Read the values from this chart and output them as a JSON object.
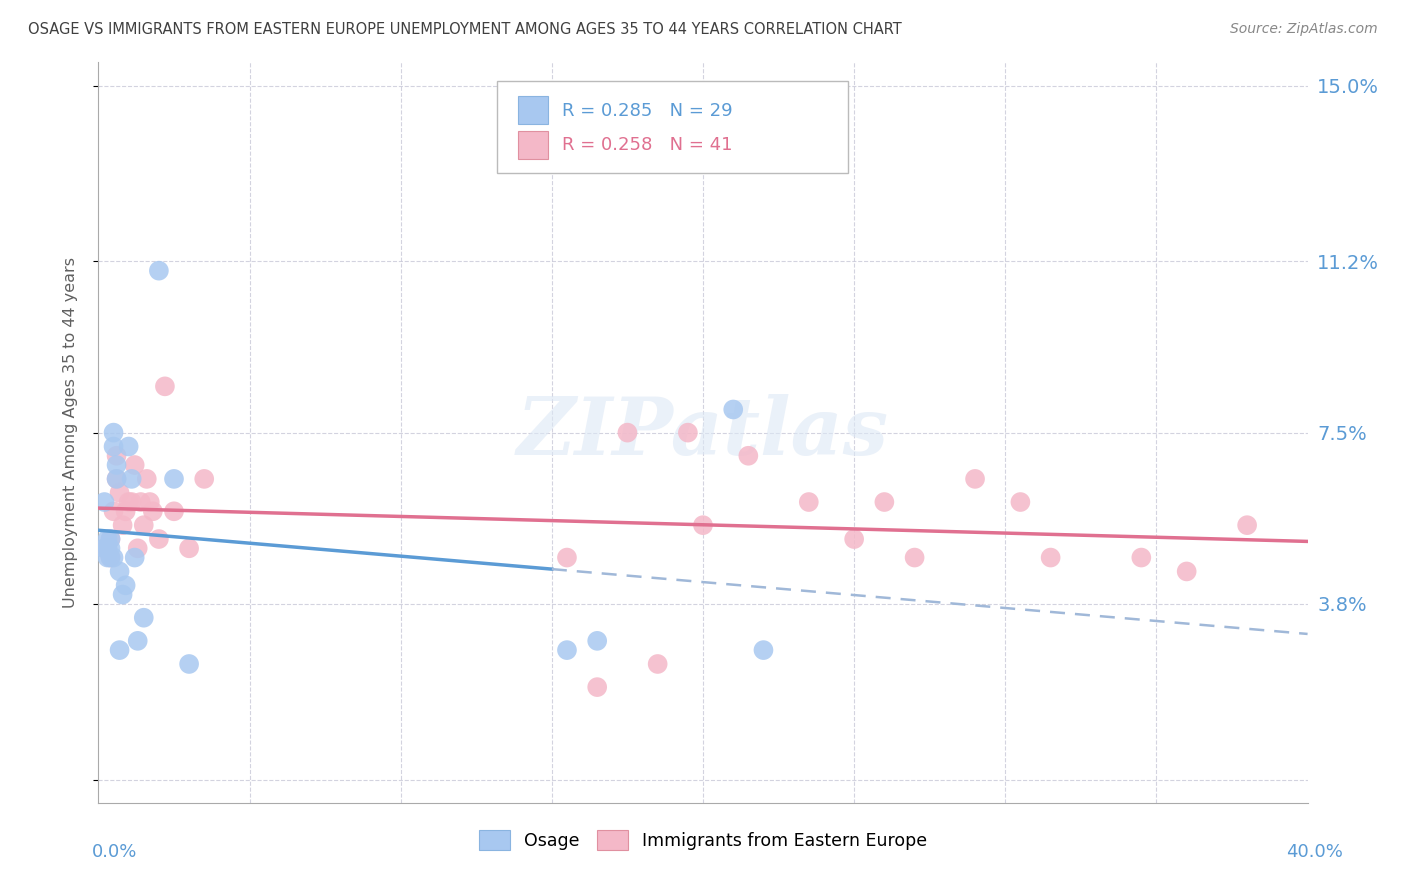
{
  "title": "OSAGE VS IMMIGRANTS FROM EASTERN EUROPE UNEMPLOYMENT AMONG AGES 35 TO 44 YEARS CORRELATION CHART",
  "source": "Source: ZipAtlas.com",
  "ylabel": "Unemployment Among Ages 35 to 44 years",
  "ytick_vals": [
    0.0,
    0.038,
    0.075,
    0.112,
    0.15
  ],
  "ytick_labels": [
    "",
    "3.8%",
    "7.5%",
    "11.2%",
    "15.0%"
  ],
  "xlim": [
    0.0,
    0.4
  ],
  "ylim": [
    -0.005,
    0.155
  ],
  "legend_r1": "R = 0.285",
  "legend_n1": "N = 29",
  "legend_r2": "R = 0.258",
  "legend_n2": "N = 41",
  "watermark": "ZIPatlas",
  "blue_color": "#a8c8f0",
  "blue_line": "#5b9bd5",
  "blue_dash": "#a0b8d8",
  "pink_color": "#f4b8c8",
  "pink_line": "#e07090",
  "background_color": "#ffffff",
  "grid_color": "#c8c8d8",
  "title_color": "#404040",
  "tick_label_color": "#5b9bd5",
  "ylabel_color": "#606060",
  "osage_x": [
    0.002,
    0.002,
    0.003,
    0.003,
    0.003,
    0.004,
    0.004,
    0.004,
    0.005,
    0.005,
    0.005,
    0.006,
    0.006,
    0.007,
    0.007,
    0.008,
    0.009,
    0.01,
    0.011,
    0.012,
    0.013,
    0.015,
    0.02,
    0.025,
    0.03,
    0.155,
    0.165,
    0.21,
    0.22
  ],
  "osage_y": [
    0.05,
    0.06,
    0.05,
    0.048,
    0.052,
    0.052,
    0.048,
    0.05,
    0.048,
    0.072,
    0.075,
    0.065,
    0.068,
    0.028,
    0.045,
    0.04,
    0.042,
    0.072,
    0.065,
    0.048,
    0.03,
    0.035,
    0.11,
    0.065,
    0.025,
    0.028,
    0.03,
    0.08,
    0.028
  ],
  "europe_x": [
    0.002,
    0.003,
    0.004,
    0.004,
    0.005,
    0.006,
    0.006,
    0.007,
    0.008,
    0.009,
    0.01,
    0.011,
    0.012,
    0.013,
    0.014,
    0.015,
    0.016,
    0.017,
    0.018,
    0.02,
    0.022,
    0.025,
    0.03,
    0.035,
    0.155,
    0.165,
    0.185,
    0.2,
    0.215,
    0.235,
    0.25,
    0.27,
    0.29,
    0.305,
    0.315,
    0.345,
    0.36,
    0.38,
    0.195,
    0.26,
    0.175
  ],
  "europe_y": [
    0.05,
    0.05,
    0.048,
    0.052,
    0.058,
    0.065,
    0.07,
    0.062,
    0.055,
    0.058,
    0.06,
    0.06,
    0.068,
    0.05,
    0.06,
    0.055,
    0.065,
    0.06,
    0.058,
    0.052,
    0.085,
    0.058,
    0.05,
    0.065,
    0.048,
    0.02,
    0.025,
    0.055,
    0.07,
    0.06,
    0.052,
    0.048,
    0.065,
    0.06,
    0.048,
    0.048,
    0.045,
    0.055,
    0.075,
    0.06,
    0.075
  ]
}
